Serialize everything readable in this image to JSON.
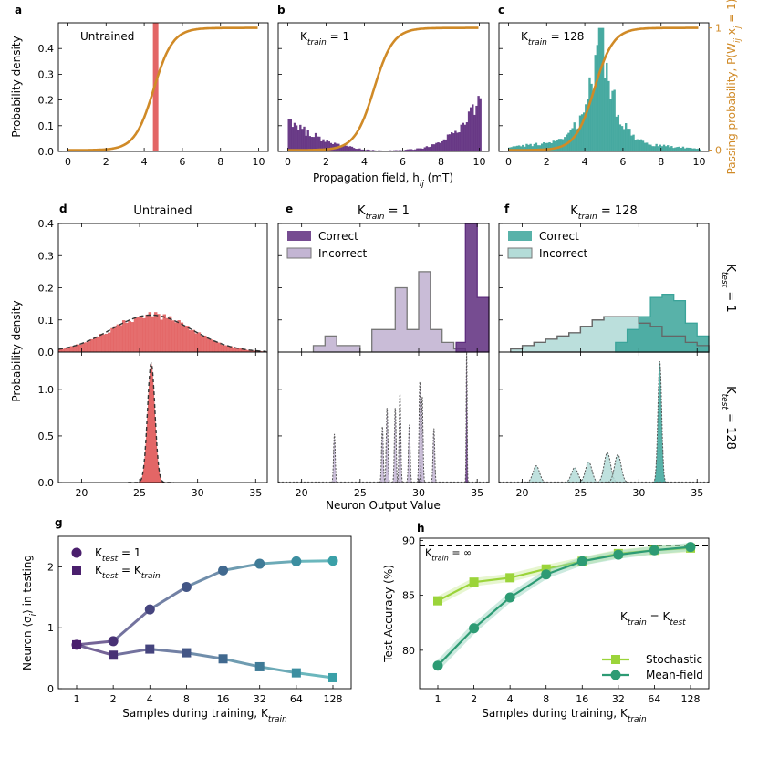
{
  "figure": {
    "panel_letters": [
      "a",
      "b",
      "c",
      "d",
      "e",
      "f",
      "g",
      "h"
    ],
    "shared_labels": {
      "ylabel_top": "Probability density",
      "xlabel_top": "Propagation field, h_ij (mT)",
      "ylabel_right": "Passing probability, P(W_ij x_j = 1)",
      "ylabel_mid": "Probability density",
      "xlabel_mid": "Neuron Output Value",
      "row_labels_mid": [
        "K_test = 1",
        "K_test = 128"
      ]
    },
    "colors": {
      "purple": "#5e2d7e",
      "purple_light": "#c3b5d3",
      "teal": "#3ba49a",
      "teal_light": "#b4dcd8",
      "red": "#e05555",
      "orange": "#d08a27",
      "green_light": "#9bd43a",
      "green_dark": "#2d9b74"
    }
  },
  "chart_data": [
    {
      "id": "a",
      "type": "bar+line",
      "annotation": "Untrained",
      "xlim": [
        -0.5,
        10.5
      ],
      "ylim": [
        0,
        0.5
      ],
      "xticks": [
        0,
        2,
        4,
        6,
        8,
        10
      ],
      "yticks": [
        0.0,
        0.1,
        0.2,
        0.3,
        0.4
      ],
      "hist": {
        "x": [
          4.6
        ],
        "values": [
          0.5
        ],
        "color": "#e05555"
      },
      "sigmoid": {
        "center": 4.5,
        "slope": 2.0,
        "scale": 0.475
      }
    },
    {
      "id": "b",
      "type": "bar+line",
      "annotation": "K_train = 1",
      "xlim": [
        -0.5,
        10.5
      ],
      "ylim": [
        0,
        0.5
      ],
      "xticks": [
        0,
        2,
        4,
        6,
        8,
        10
      ],
      "hist_profile": [
        [
          0,
          0.12
        ],
        [
          0.4,
          0.1
        ],
        [
          1,
          0.075
        ],
        [
          2,
          0.04
        ],
        [
          3,
          0.02
        ],
        [
          4,
          0.007
        ],
        [
          5,
          0.003
        ],
        [
          6,
          0.005
        ],
        [
          7,
          0.012
        ],
        [
          8,
          0.035
        ],
        [
          9,
          0.09
        ],
        [
          9.6,
          0.16
        ],
        [
          10,
          0.2
        ]
      ],
      "sigmoid": {
        "center": 4.5,
        "slope": 2.0,
        "scale": 0.475
      }
    },
    {
      "id": "c",
      "type": "bar+line",
      "annotation": "K_train = 128",
      "xlim": [
        -0.5,
        10.5
      ],
      "ylim": [
        0,
        0.5
      ],
      "xticks": [
        0,
        2,
        4,
        6,
        8,
        10
      ],
      "right_yticks": [
        "0",
        "1"
      ],
      "hist_profile": [
        [
          0,
          0.02
        ],
        [
          2,
          0.03
        ],
        [
          3,
          0.05
        ],
        [
          3.8,
          0.13
        ],
        [
          4.4,
          0.27
        ],
        [
          4.8,
          0.42
        ],
        [
          5.2,
          0.3
        ],
        [
          5.8,
          0.12
        ],
        [
          6.5,
          0.06
        ],
        [
          7.5,
          0.025
        ],
        [
          10,
          0.01
        ]
      ],
      "sigmoid": {
        "center": 4.5,
        "slope": 2.0,
        "scale": 0.475
      }
    },
    {
      "id": "d",
      "type": "histogram+gaussian",
      "title": "Untrained",
      "xlim": [
        18,
        36
      ],
      "ylim_top": [
        0,
        0.4
      ],
      "ylim_bottom": [
        0,
        1.4
      ],
      "xticks": [
        20,
        25,
        30,
        35
      ],
      "yticks_top": [
        0.0,
        0.1,
        0.2,
        0.3,
        0.4
      ],
      "yticks_bottom": [
        0.0,
        0.5,
        1.0
      ],
      "top": {
        "mean": 26,
        "sigma": 3.5,
        "peak": 0.115
      },
      "bottom": {
        "mean": 26,
        "sigma": 0.32,
        "peak": 1.28
      }
    },
    {
      "id": "e",
      "type": "step-histogram",
      "title": "K_train = 1",
      "xlim": [
        18,
        36
      ],
      "ylim_top": [
        0,
        0.4
      ],
      "ylim_bottom": [
        0,
        1.4
      ],
      "xticks": [
        20,
        25,
        30,
        35
      ],
      "legend": [
        "Correct",
        "Incorrect"
      ],
      "top": {
        "incorrect": {
          "edges": [
            21,
            22,
            23,
            24,
            25,
            26,
            27,
            28,
            29,
            30,
            31,
            32,
            33,
            34
          ],
          "values": [
            0.02,
            0.05,
            0.02,
            0.02,
            0.0,
            0.07,
            0.07,
            0.2,
            0.07,
            0.25,
            0.07,
            0.03,
            0.01
          ]
        },
        "correct": {
          "edges": [
            33.2,
            34,
            35,
            36
          ],
          "values": [
            0.03,
            0.4,
            0.17
          ]
        }
      },
      "bottom": {
        "incorrect_peaks": [
          [
            22.8,
            0.52
          ],
          [
            26.9,
            0.6
          ],
          [
            27.3,
            0.8
          ],
          [
            28.0,
            0.8
          ],
          [
            28.4,
            0.95
          ],
          [
            29.2,
            0.62
          ],
          [
            30.1,
            1.08
          ],
          [
            30.3,
            0.92
          ],
          [
            31.3,
            0.58
          ]
        ],
        "correct_peaks": [
          [
            34.1,
            1.4
          ]
        ]
      }
    },
    {
      "id": "f",
      "type": "step-histogram",
      "title": "K_train = 128",
      "xlim": [
        18,
        36
      ],
      "ylim_top": [
        0,
        0.4
      ],
      "ylim_bottom": [
        0,
        1.4
      ],
      "xticks": [
        20,
        25,
        30,
        35
      ],
      "legend": [
        "Correct",
        "Incorrect"
      ],
      "top": {
        "incorrect": {
          "edges": [
            19,
            20,
            21,
            22,
            23,
            24,
            25,
            26,
            27,
            28,
            29,
            30,
            31,
            32,
            33,
            34,
            35,
            36
          ],
          "values": [
            0.01,
            0.02,
            0.03,
            0.04,
            0.05,
            0.06,
            0.08,
            0.1,
            0.11,
            0.11,
            0.11,
            0.09,
            0.08,
            0.05,
            0.05,
            0.03,
            0.02
          ]
        },
        "correct": {
          "edges": [
            28,
            29,
            30,
            31,
            32,
            33,
            34,
            35,
            36
          ],
          "values": [
            0.03,
            0.07,
            0.11,
            0.17,
            0.18,
            0.16,
            0.09,
            0.05
          ]
        }
      },
      "bottom": {
        "incorrect_peaks": [
          [
            21.2,
            0.18
          ],
          [
            24.5,
            0.16
          ],
          [
            25.7,
            0.22
          ],
          [
            27.3,
            0.32
          ],
          [
            28.2,
            0.3
          ]
        ],
        "correct_peaks": [
          [
            31.8,
            1.3
          ]
        ]
      }
    },
    {
      "id": "g",
      "type": "line",
      "xlabel": "Samples during training, K_train",
      "ylabel": "Neuron ⟨σ_i⟩ in testing",
      "categories": [
        "1",
        "2",
        "4",
        "8",
        "16",
        "32",
        "64",
        "128"
      ],
      "ylim": [
        0,
        2.5
      ],
      "yticks": [
        0,
        1,
        2
      ],
      "series": [
        {
          "name": "K_test = 1",
          "marker": "circle",
          "values": [
            0.72,
            0.78,
            1.3,
            1.67,
            1.94,
            2.05,
            2.09,
            2.1
          ]
        },
        {
          "name": "K_test = K_train",
          "marker": "square",
          "values": [
            0.72,
            0.55,
            0.65,
            0.59,
            0.49,
            0.36,
            0.26,
            0.18
          ]
        }
      ]
    },
    {
      "id": "h",
      "type": "line",
      "xlabel": "Samples during training, K_train",
      "ylabel": "Test Accuracy (%)",
      "categories": [
        "1",
        "2",
        "4",
        "8",
        "16",
        "32",
        "64",
        "128"
      ],
      "ylim": [
        76.5,
        90.2
      ],
      "yticks": [
        80,
        85,
        90
      ],
      "reference": {
        "label": "K_train = ∞",
        "value": 89.5
      },
      "annotation": "K_train = K_test",
      "series": [
        {
          "name": "Stochastic",
          "marker": "square",
          "values": [
            84.5,
            86.2,
            86.6,
            87.4,
            88.1,
            88.8,
            89.1,
            89.3
          ]
        },
        {
          "name": "Mean-field",
          "marker": "circle",
          "values": [
            78.6,
            82.0,
            84.8,
            86.9,
            88.1,
            88.7,
            89.1,
            89.4
          ]
        }
      ]
    }
  ]
}
